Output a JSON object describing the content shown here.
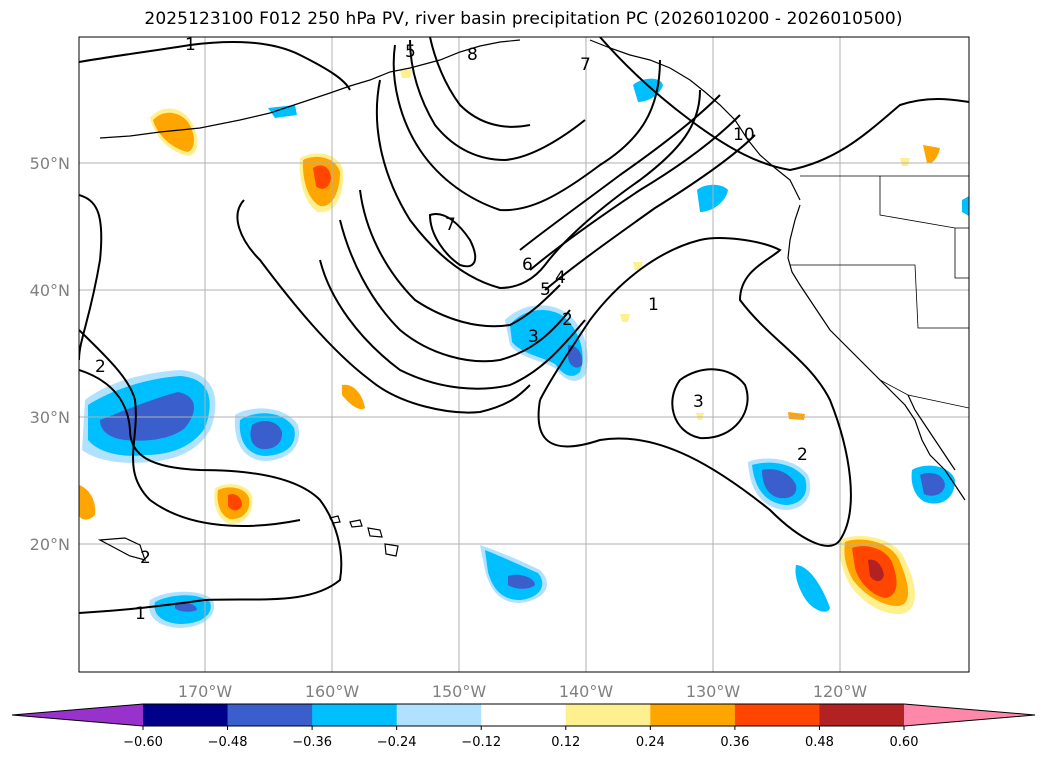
{
  "title": "2025123100 F012 250 hPa PV, river basin precipitation PC (2026010200 - 2026010500)",
  "lat_labels": [
    "50°N",
    "40°N",
    "30°N",
    "20°N"
  ],
  "lon_labels": [
    "170°W",
    "160°W",
    "150°W",
    "140°W",
    "130°W",
    "120°W"
  ],
  "colorbar": {
    "colors": [
      "#9932cc",
      "#00008b",
      "#3a5fcd",
      "#00bfff",
      "#b0e2ff",
      "#ffffff",
      "#fff08f",
      "#ffa500",
      "#ff4500",
      "#b22222",
      "#ff88aa"
    ],
    "ticks": [
      "−0.60",
      "−0.48",
      "−0.36",
      "−0.24",
      "−0.12",
      "0.12",
      "0.24",
      "0.36",
      "0.48",
      "0.60"
    ]
  },
  "contour_labels": [
    "1",
    "1",
    "1",
    "2",
    "2",
    "2",
    "2",
    "3",
    "3",
    "4",
    "5",
    "5",
    "6",
    "7",
    "7",
    "8",
    "10"
  ],
  "colors": {
    "grid": "#b0b0b0",
    "contour": "#000000",
    "coast": "#000000"
  }
}
